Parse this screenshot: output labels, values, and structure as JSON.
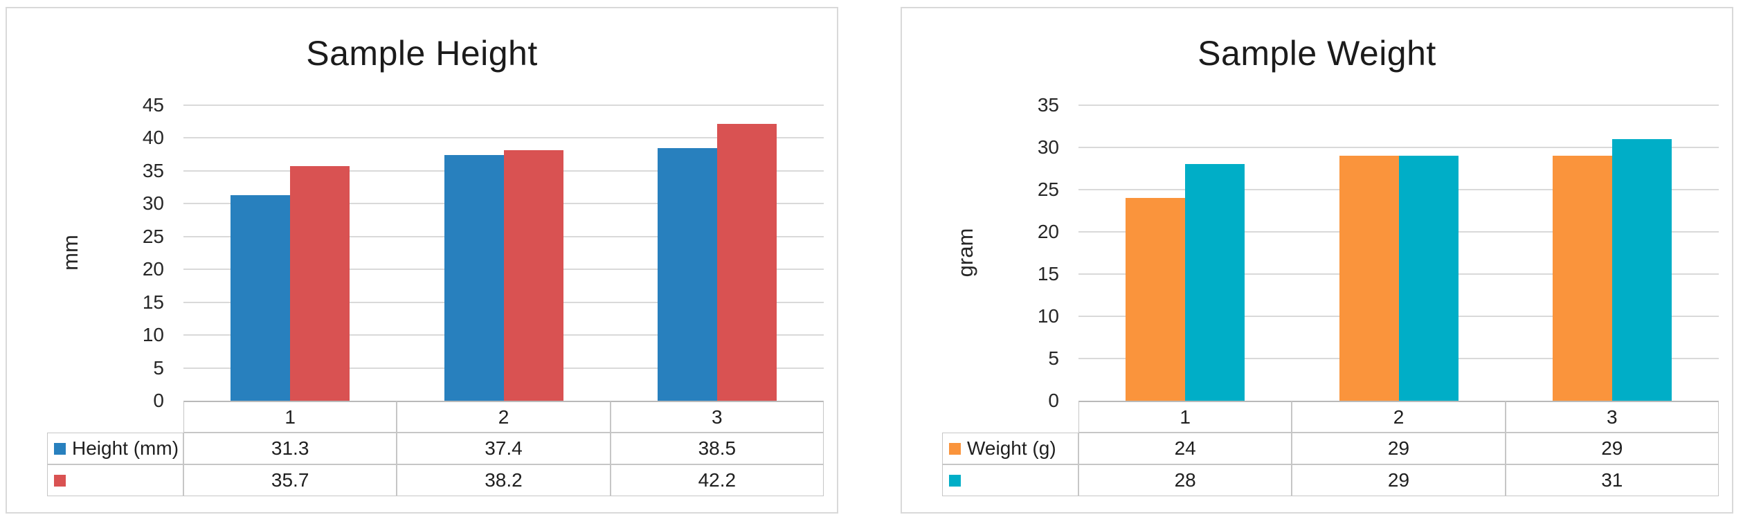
{
  "chart_data": [
    {
      "type": "bar",
      "title": "Sample Height",
      "xlabel": "",
      "ylabel": "mm",
      "ylim": [
        0,
        45
      ],
      "ytick_step": 5,
      "ytick_labels": [
        "45",
        "40",
        "35",
        "30",
        "25",
        "20",
        "15",
        "10",
        "5",
        "0"
      ],
      "grid": true,
      "legend_position": "data-table-left",
      "categories": [
        "1",
        "2",
        "3"
      ],
      "series": [
        {
          "name": "Height (mm)",
          "color": "#2880BE",
          "values": [
            31.3,
            37.4,
            38.5
          ]
        },
        {
          "name": "",
          "color": "#D95252",
          "values": [
            35.7,
            38.2,
            42.2
          ]
        }
      ]
    },
    {
      "type": "bar",
      "title": "Sample Weight",
      "xlabel": "",
      "ylabel": "gram",
      "ylim": [
        0,
        35
      ],
      "ytick_step": 5,
      "ytick_labels": [
        "35",
        "30",
        "25",
        "20",
        "15",
        "10",
        "5",
        "0"
      ],
      "grid": true,
      "legend_position": "data-table-left",
      "categories": [
        "1",
        "2",
        "3"
      ],
      "series": [
        {
          "name": "Weight (g)",
          "color": "#FA943C",
          "values": [
            24,
            29,
            29
          ]
        },
        {
          "name": "",
          "color": "#00AEC7",
          "values": [
            28,
            29,
            31
          ]
        }
      ]
    }
  ]
}
